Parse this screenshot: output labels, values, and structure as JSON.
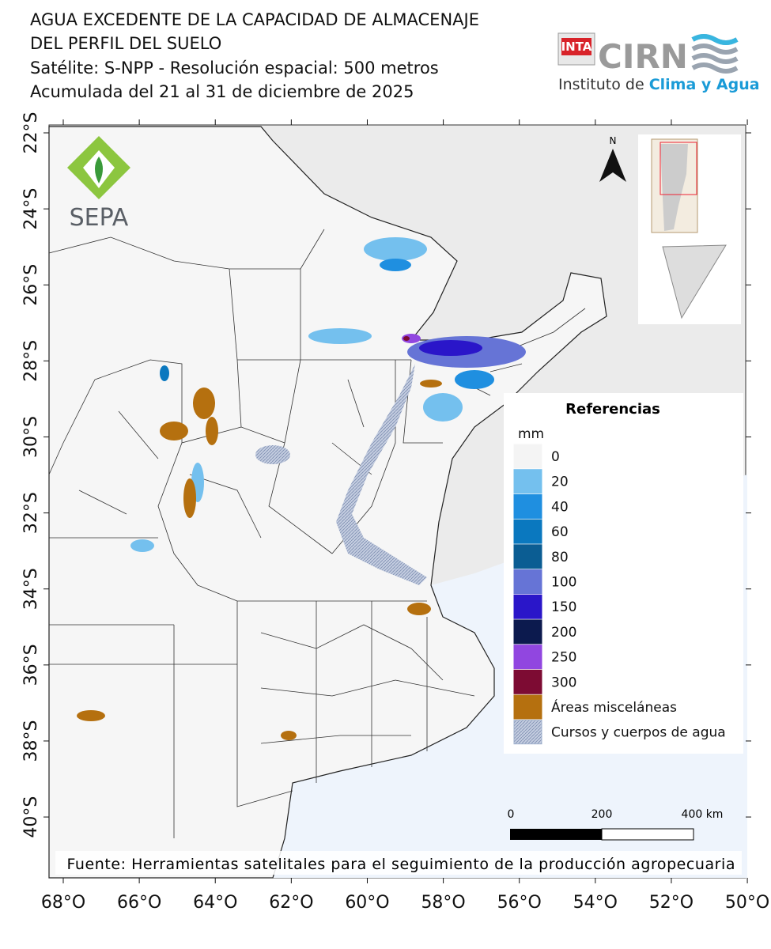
{
  "header": {
    "title_lines": [
      "AGUA EXCEDENTE DE LA CAPACIDAD DE ALMACENAJE",
      "DEL PERFIL DEL SUELO",
      "Satélite: S-NPP - Resolución espacial: 500 metros",
      "Acumulada del 21 al 31 de diciembre de 2025"
    ],
    "logo_inta": "INTA",
    "logo_cirn": "CIRN",
    "logo_subtitle": "Instituto de",
    "logo_subtitle_accent": "Clima y Agua"
  },
  "sepa_logo": "SEPA",
  "north_label": "N",
  "lat_ticks": [
    "22°S",
    "24°S",
    "26°S",
    "28°S",
    "30°S",
    "32°S",
    "34°S",
    "36°S",
    "38°S",
    "40°S"
  ],
  "lon_ticks": [
    "68°O",
    "66°O",
    "64°O",
    "62°O",
    "60°O",
    "58°O",
    "56°O",
    "54°O",
    "52°O",
    "50°O"
  ],
  "legend": {
    "title": "Referencias",
    "unit": "mm",
    "items": [
      {
        "label": "0",
        "color": "#f4f4f4"
      },
      {
        "label": "20",
        "color": "#74c0ee"
      },
      {
        "label": "40",
        "color": "#1f8fe0"
      },
      {
        "label": "60",
        "color": "#0a78bf"
      },
      {
        "label": "80",
        "color": "#0b5d93"
      },
      {
        "label": "100",
        "color": "#6674d6"
      },
      {
        "label": "150",
        "color": "#2a16c9"
      },
      {
        "label": "200",
        "color": "#0c1a4e"
      },
      {
        "label": "250",
        "color": "#9146e0"
      },
      {
        "label": "300",
        "color": "#7d0b33"
      },
      {
        "label": "Áreas misceláneas",
        "color": "#b5700f"
      },
      {
        "label": "Cursos y cuerpos de agua",
        "color": "#9fb0cc"
      }
    ]
  },
  "scale_bar": [
    "0",
    "200",
    "400 km"
  ],
  "source": "Fuente: Herramientas satelitales para el seguimiento de la producción agropecuaria"
}
